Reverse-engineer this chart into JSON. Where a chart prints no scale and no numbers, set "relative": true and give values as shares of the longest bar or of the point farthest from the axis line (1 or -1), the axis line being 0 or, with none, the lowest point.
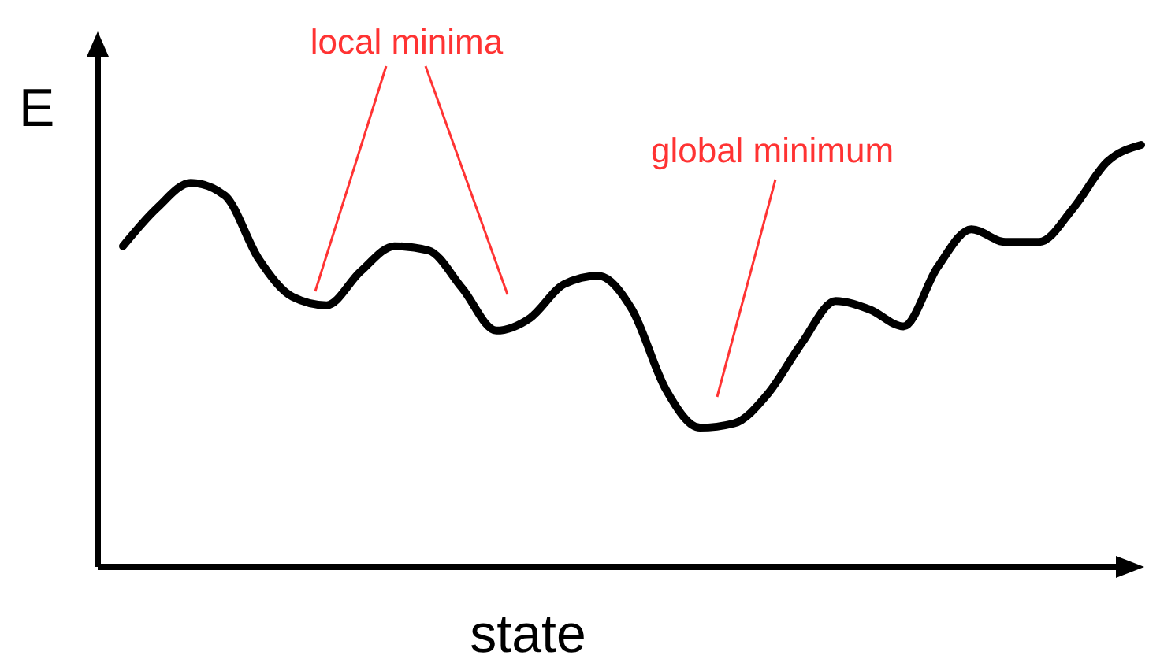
{
  "chart_data": {
    "type": "line",
    "relative": true,
    "xlabel": "state",
    "ylabel": "E",
    "annotations": [
      "local minima",
      "global minimum"
    ],
    "line_style": "solid",
    "categories": [
      null,
      null,
      null,
      null,
      null,
      null,
      null,
      null,
      null,
      null,
      null,
      null,
      null,
      null,
      null,
      null,
      null,
      null,
      null,
      null,
      null,
      null,
      null,
      null,
      null,
      null,
      null,
      null,
      null,
      null,
      null
    ],
    "series": [
      {
        "color": "#000000",
        "values": [
          0.76,
          0.85,
          0.91,
          0.88,
          0.73,
          0.64,
          0.62,
          0.7,
          0.76,
          0.75,
          0.66,
          0.56,
          0.59,
          0.67,
          0.69,
          0.61,
          0.42,
          0.33,
          0.34,
          0.41,
          0.53,
          0.63,
          0.61,
          0.57,
          0.71,
          0.8,
          0.77,
          0.77,
          0.85,
          0.96,
          1
        ]
      }
    ]
  }
}
